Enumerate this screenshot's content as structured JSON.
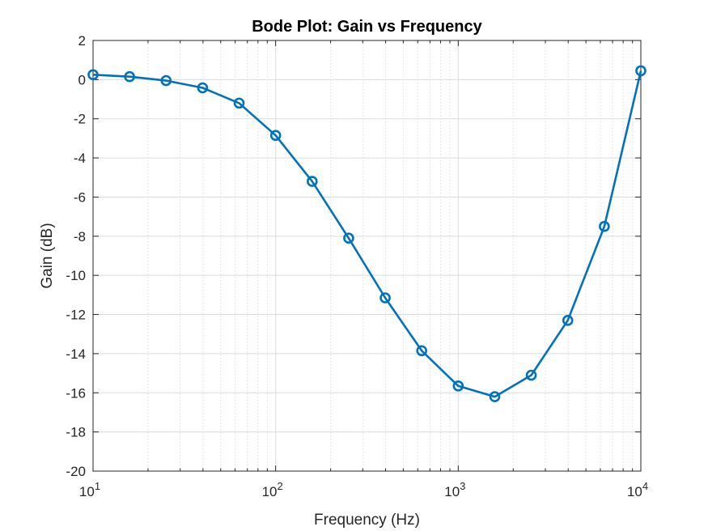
{
  "chart_data": {
    "type": "line",
    "title": "Bode Plot: Gain vs Frequency",
    "xlabel": "Frequency (Hz)",
    "ylabel": "Gain (dB)",
    "xscale": "log",
    "xlim": [
      10,
      10000
    ],
    "ylim": [
      -20,
      2
    ],
    "grid": true,
    "minor_grid": true,
    "x_ticks": [
      10,
      100,
      1000,
      10000
    ],
    "y_ticks": [
      2,
      0,
      -2,
      -4,
      -6,
      -8,
      -10,
      -12,
      -14,
      -16,
      -18,
      -20
    ],
    "y_tick_labels": [
      "2",
      "0",
      "-2",
      "-4",
      "-6",
      "-8",
      "-10",
      "-12",
      "-14",
      "-16",
      "-18",
      "-20"
    ],
    "series": [
      {
        "color": "#0072bd",
        "marker": "circle",
        "x": [
          10,
          15.85,
          25.12,
          39.81,
          63.1,
          100,
          158.5,
          251.2,
          398.1,
          631,
          1000,
          1585,
          2512,
          3981,
          6310,
          10000
        ],
        "y": [
          0.25,
          0.15,
          -0.05,
          -0.42,
          -1.2,
          -2.85,
          -5.2,
          -8.1,
          -11.15,
          -13.85,
          -15.65,
          -16.2,
          -15.1,
          -12.3,
          -7.5,
          0.45
        ]
      }
    ]
  }
}
